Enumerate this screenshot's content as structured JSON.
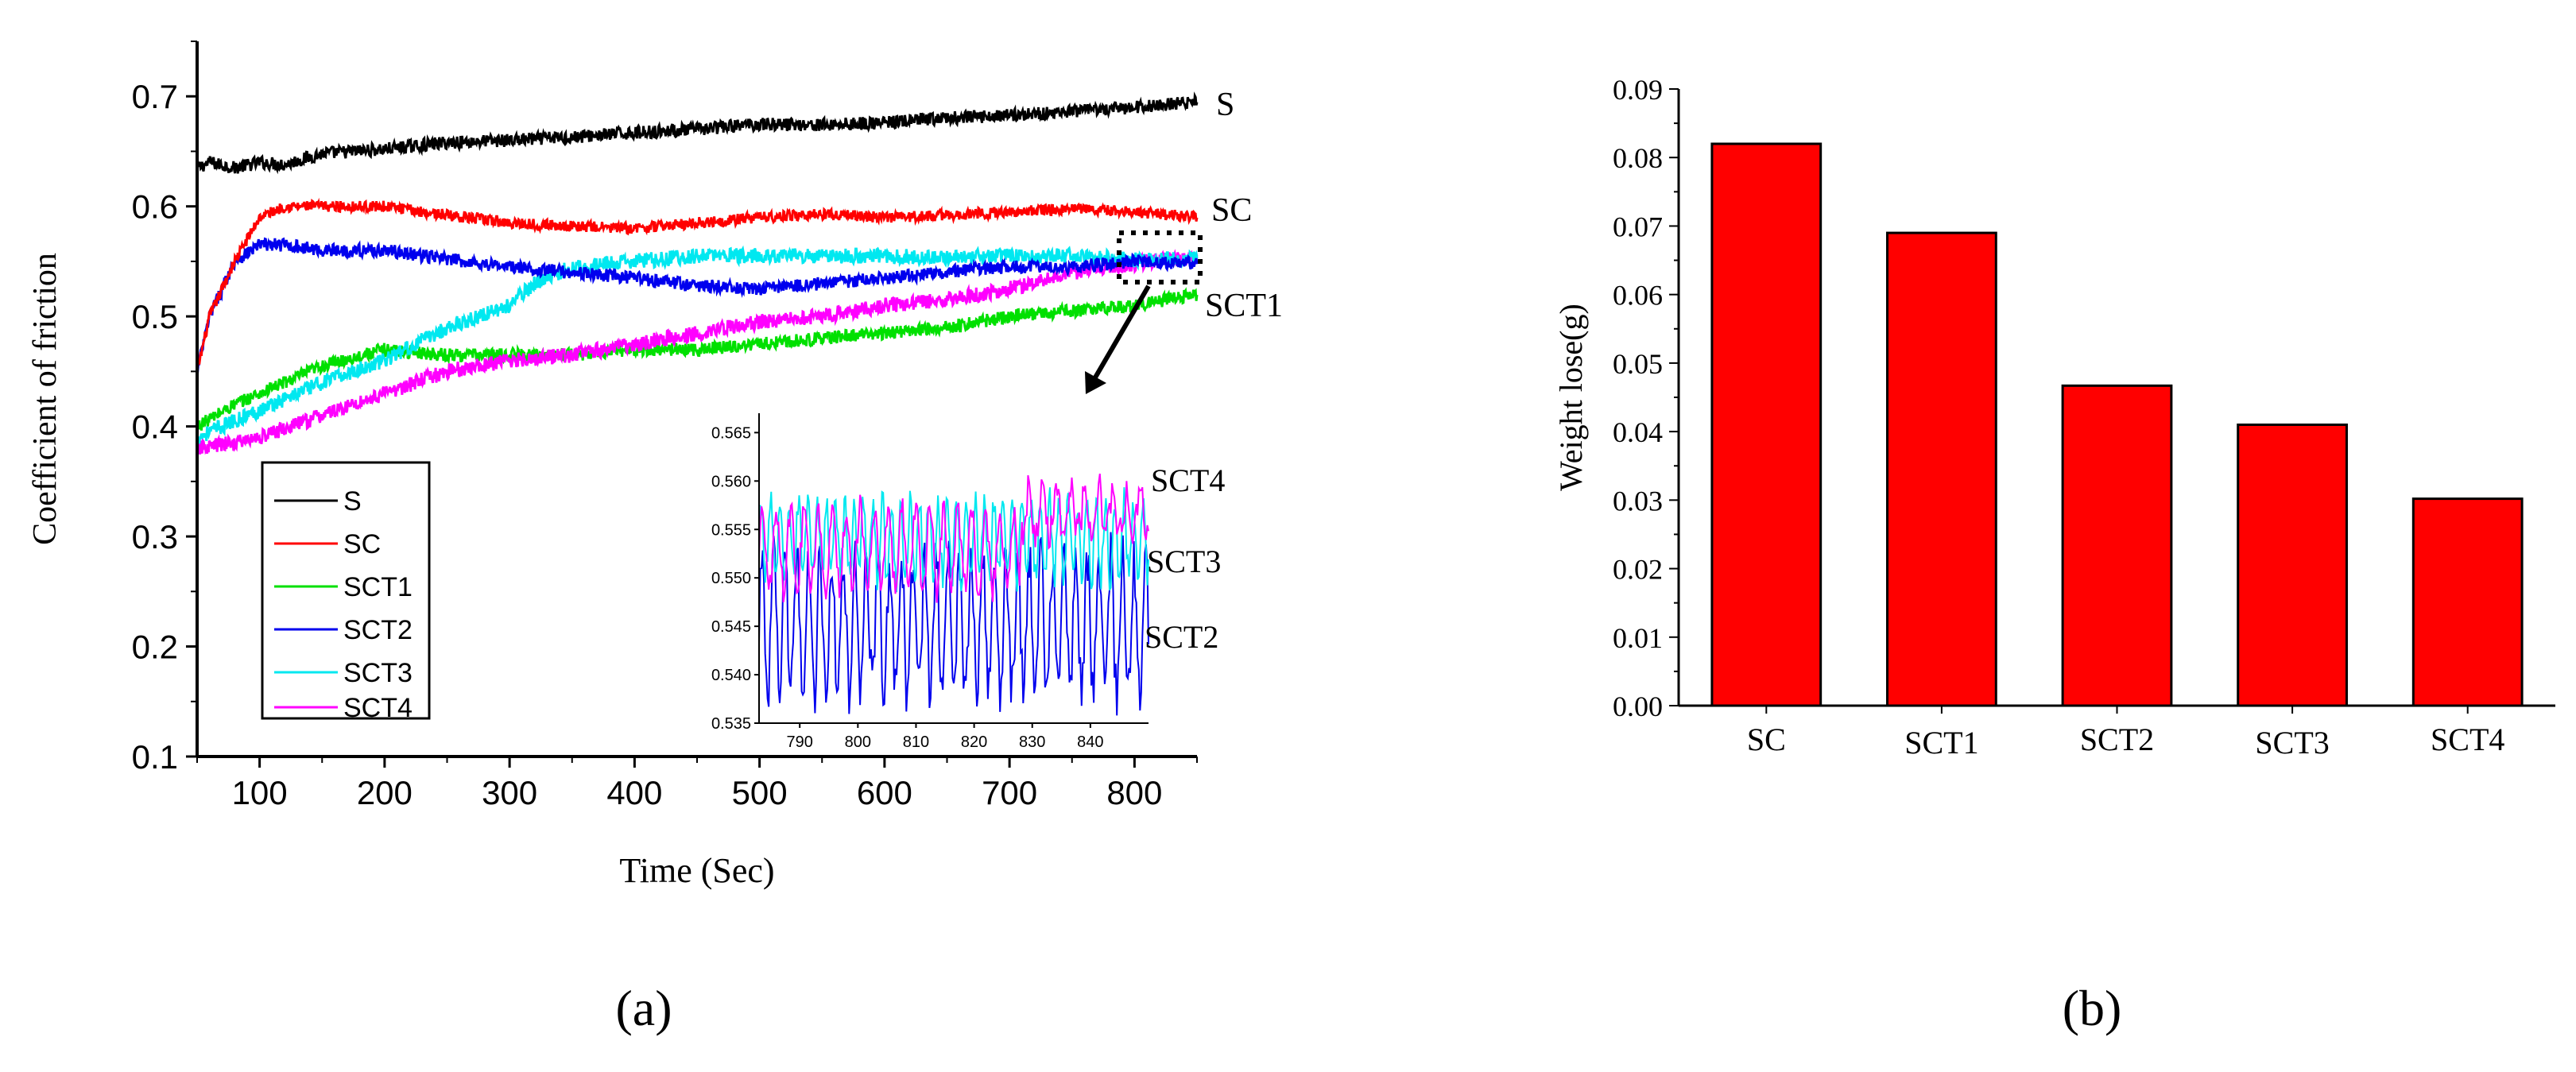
{
  "chart_data": [
    {
      "type": "line",
      "panel_label": "(a)",
      "xlabel": "Time (Sec)",
      "ylabel": "Coefficient of friction",
      "xlim": [
        50,
        850
      ],
      "ylim": [
        0.1,
        0.75
      ],
      "xticks": [
        100,
        200,
        300,
        400,
        500,
        600,
        700,
        800
      ],
      "yticks": [
        0.1,
        0.2,
        0.3,
        0.4,
        0.5,
        0.6,
        0.7
      ],
      "grid": false,
      "legend_position": "bottom-left",
      "series": [
        {
          "name": "S",
          "label": "S",
          "color": "#000000",
          "noise": 0.006,
          "x": [
            50,
            60,
            80,
            100,
            120,
            150,
            200,
            250,
            300,
            350,
            400,
            450,
            500,
            550,
            600,
            650,
            700,
            750,
            800,
            850
          ],
          "y": [
            0.635,
            0.64,
            0.635,
            0.64,
            0.638,
            0.648,
            0.652,
            0.658,
            0.66,
            0.663,
            0.667,
            0.67,
            0.675,
            0.674,
            0.676,
            0.68,
            0.683,
            0.686,
            0.69,
            0.695
          ]
        },
        {
          "name": "SC",
          "label": "SC",
          "color": "#ff0000",
          "noise": 0.005,
          "x": [
            50,
            60,
            80,
            100,
            120,
            150,
            200,
            250,
            300,
            350,
            400,
            450,
            500,
            550,
            600,
            650,
            700,
            750,
            800,
            850
          ],
          "y": [
            0.45,
            0.5,
            0.55,
            0.59,
            0.6,
            0.6,
            0.6,
            0.592,
            0.585,
            0.582,
            0.58,
            0.585,
            0.59,
            0.593,
            0.59,
            0.592,
            0.595,
            0.598,
            0.595,
            0.59
          ]
        },
        {
          "name": "SCT1",
          "label": "SCT1",
          "color": "#00e000",
          "noise": 0.006,
          "x": [
            50,
            80,
            100,
            150,
            200,
            250,
            300,
            350,
            400,
            450,
            500,
            550,
            600,
            650,
            700,
            750,
            800,
            850
          ],
          "y": [
            0.4,
            0.42,
            0.43,
            0.455,
            0.47,
            0.465,
            0.465,
            0.465,
            0.47,
            0.47,
            0.475,
            0.48,
            0.485,
            0.49,
            0.5,
            0.505,
            0.51,
            0.52
          ]
        },
        {
          "name": "SCT2",
          "label": "SCT2",
          "color": "#0000ee",
          "noise": 0.006,
          "x": [
            50,
            60,
            80,
            100,
            120,
            150,
            200,
            250,
            300,
            350,
            400,
            450,
            500,
            550,
            600,
            650,
            700,
            750,
            800,
            850
          ],
          "y": [
            0.45,
            0.5,
            0.55,
            0.565,
            0.565,
            0.56,
            0.56,
            0.552,
            0.545,
            0.54,
            0.535,
            0.528,
            0.525,
            0.53,
            0.535,
            0.54,
            0.545,
            0.545,
            0.55,
            0.548
          ]
        },
        {
          "name": "SCT3",
          "label": "SCT3",
          "color": "#00e8f0",
          "noise": 0.007,
          "x": [
            50,
            80,
            100,
            150,
            200,
            250,
            300,
            320,
            350,
            400,
            450,
            500,
            550,
            600,
            650,
            700,
            750,
            800,
            850
          ],
          "y": [
            0.39,
            0.405,
            0.415,
            0.44,
            0.46,
            0.49,
            0.51,
            0.53,
            0.545,
            0.55,
            0.555,
            0.555,
            0.555,
            0.555,
            0.553,
            0.555,
            0.555,
            0.552,
            0.553
          ]
        },
        {
          "name": "SCT4",
          "label": "SCT4",
          "color": "#ff00ff",
          "noise": 0.007,
          "x": [
            50,
            80,
            100,
            150,
            200,
            250,
            300,
            350,
            400,
            450,
            500,
            550,
            600,
            650,
            700,
            750,
            800,
            850
          ],
          "y": [
            0.38,
            0.385,
            0.39,
            0.41,
            0.43,
            0.45,
            0.46,
            0.465,
            0.475,
            0.485,
            0.495,
            0.5,
            0.51,
            0.515,
            0.525,
            0.54,
            0.548,
            0.555
          ]
        }
      ],
      "annotations": [
        {
          "text": "S",
          "series": "S"
        },
        {
          "text": "SC",
          "series": "SC"
        },
        {
          "text": "SCT1",
          "series": "SCT1"
        }
      ],
      "inset": {
        "type": "line",
        "xlim": [
          783,
          850
        ],
        "ylim": [
          0.535,
          0.567
        ],
        "xticks": [
          790,
          800,
          810,
          820,
          830,
          840
        ],
        "yticks": [
          0.535,
          0.54,
          0.545,
          0.55,
          0.555,
          0.56,
          0.565
        ],
        "labels": [
          "SCT4",
          "SCT3",
          "SCT2"
        ],
        "series": [
          {
            "name": "SCT2",
            "color": "#0000ee",
            "center": 0.545,
            "amplitude": 0.007,
            "period": 2.0
          },
          {
            "name": "SCT3",
            "color": "#00e8f0",
            "center": 0.554,
            "amplitude": 0.004,
            "period": 1.6
          },
          {
            "name": "SCT4",
            "color": "#ff00ff",
            "center": 0.553,
            "amplitude": 0.004,
            "period": 2.4
          }
        ]
      }
    },
    {
      "type": "bar",
      "panel_label": "(b)",
      "xlabel": "",
      "ylabel": "Weight lose(g)",
      "ylim": [
        0,
        0.09
      ],
      "yticks": [
        "0.00",
        "0.01",
        "0.02",
        "0.03",
        "0.04",
        "0.05",
        "0.06",
        "0.07",
        "0.08",
        "0.09"
      ],
      "grid": false,
      "bar_color": "#ff0000",
      "categories": [
        "SC",
        "SCT1",
        "SCT2",
        "SCT3",
        "SCT4"
      ],
      "values": [
        0.082,
        0.069,
        0.0467,
        0.041,
        0.0302
      ]
    }
  ]
}
